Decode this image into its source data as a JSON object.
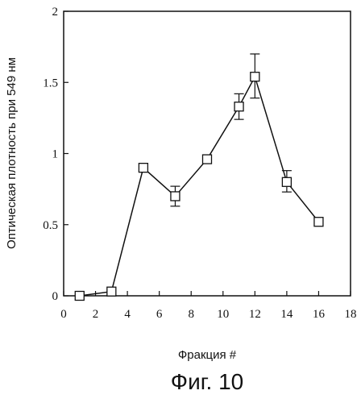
{
  "chart_data": {
    "type": "line",
    "xlabel": "Фракция #",
    "ylabel": "Оптическая плотность при 549 нм",
    "xlim": [
      0,
      18
    ],
    "ylim": [
      0,
      2
    ],
    "x_ticks": [
      0,
      2,
      4,
      6,
      8,
      10,
      12,
      14,
      16,
      18
    ],
    "y_ticks": [
      0,
      0.5,
      1,
      1.5,
      2
    ],
    "y_tick_labels": [
      "0",
      "0.5",
      "1",
      "1.5",
      "2"
    ],
    "grid": false,
    "legend": "none",
    "marker": "open-square",
    "series": [
      {
        "x": [
          1,
          3,
          5,
          7,
          9,
          11,
          12,
          14,
          16
        ],
        "y": [
          0.0,
          0.03,
          0.9,
          0.7,
          0.96,
          1.33,
          1.54,
          0.8,
          0.52
        ],
        "error_upper": [
          0,
          0,
          0,
          0.77,
          0,
          1.42,
          1.7,
          0.88,
          0
        ],
        "error_lower": [
          0,
          0,
          0,
          0.63,
          0,
          1.24,
          1.39,
          0.73,
          0
        ]
      }
    ]
  },
  "figure_caption": "Фиг. 10"
}
